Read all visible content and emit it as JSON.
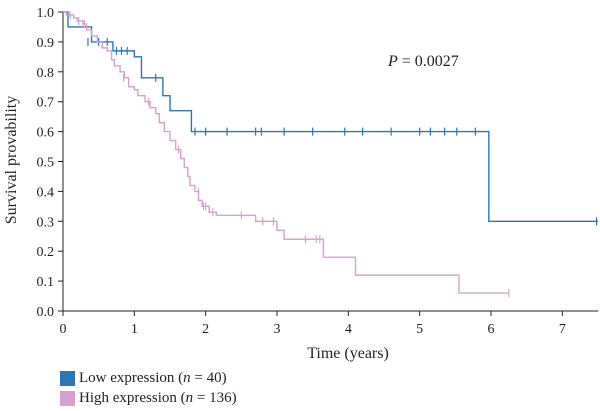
{
  "chart_data": {
    "type": "line",
    "subtype": "kaplan-meier",
    "xlabel": "Time (years)",
    "ylabel": "Survival provability",
    "xlim": [
      0,
      7.5
    ],
    "ylim": [
      0,
      1.0
    ],
    "xticks": [
      "0",
      "1",
      "2",
      "3",
      "4",
      "5",
      "6",
      "7"
    ],
    "yticks": [
      "0.0",
      "0.1",
      "0.2",
      "0.3",
      "0.4",
      "0.5",
      "0.6",
      "0.7",
      "0.8",
      "0.9",
      "1.0"
    ],
    "annotation": {
      "p_label": "P",
      "p_text": " = 0.0027"
    },
    "grid": false,
    "legend_position": "bottom-left",
    "series": [
      {
        "name": "Low expression (n = 40)",
        "legend_prefix": "Low expression (",
        "legend_n": "n",
        "legend_suffix": " = 40)",
        "color": "#2e75b6",
        "steps": [
          [
            0,
            1.0
          ],
          [
            0.07,
            0.95
          ],
          [
            0.4,
            0.9
          ],
          [
            0.7,
            0.87
          ],
          [
            1.0,
            0.85
          ],
          [
            1.1,
            0.78
          ],
          [
            1.4,
            0.72
          ],
          [
            1.5,
            0.67
          ],
          [
            1.8,
            0.6
          ],
          [
            5.97,
            0.3
          ],
          [
            7.5,
            0.3
          ]
        ],
        "censored": [
          [
            0.35,
            0.9
          ],
          [
            0.5,
            0.9
          ],
          [
            0.62,
            0.9
          ],
          [
            0.75,
            0.87
          ],
          [
            0.82,
            0.87
          ],
          [
            0.9,
            0.87
          ],
          [
            1.3,
            0.78
          ],
          [
            1.85,
            0.6
          ],
          [
            2.0,
            0.6
          ],
          [
            2.3,
            0.6
          ],
          [
            2.7,
            0.6
          ],
          [
            2.78,
            0.6
          ],
          [
            3.1,
            0.6
          ],
          [
            3.5,
            0.6
          ],
          [
            3.95,
            0.6
          ],
          [
            4.2,
            0.6
          ],
          [
            4.6,
            0.6
          ],
          [
            5.0,
            0.6
          ],
          [
            5.15,
            0.6
          ],
          [
            5.35,
            0.6
          ],
          [
            5.52,
            0.6
          ],
          [
            5.78,
            0.6
          ],
          [
            7.48,
            0.3
          ]
        ]
      },
      {
        "name": "High expression (n = 136)",
        "legend_prefix": "High expression (",
        "legend_n": "n",
        "legend_suffix": " = 136)",
        "color": "#d8a0d0",
        "steps": [
          [
            0,
            1.0
          ],
          [
            0.05,
            0.99
          ],
          [
            0.15,
            0.98
          ],
          [
            0.2,
            0.97
          ],
          [
            0.28,
            0.96
          ],
          [
            0.33,
            0.94
          ],
          [
            0.4,
            0.92
          ],
          [
            0.48,
            0.9
          ],
          [
            0.55,
            0.88
          ],
          [
            0.62,
            0.87
          ],
          [
            0.68,
            0.84
          ],
          [
            0.72,
            0.82
          ],
          [
            0.8,
            0.8
          ],
          [
            0.86,
            0.78
          ],
          [
            0.92,
            0.75
          ],
          [
            1.0,
            0.74
          ],
          [
            1.05,
            0.72
          ],
          [
            1.15,
            0.7
          ],
          [
            1.22,
            0.68
          ],
          [
            1.3,
            0.66
          ],
          [
            1.35,
            0.63
          ],
          [
            1.42,
            0.6
          ],
          [
            1.5,
            0.57
          ],
          [
            1.58,
            0.54
          ],
          [
            1.65,
            0.51
          ],
          [
            1.7,
            0.48
          ],
          [
            1.75,
            0.45
          ],
          [
            1.78,
            0.42
          ],
          [
            1.85,
            0.4
          ],
          [
            1.9,
            0.37
          ],
          [
            1.95,
            0.35
          ],
          [
            2.05,
            0.33
          ],
          [
            2.15,
            0.32
          ],
          [
            2.7,
            0.3
          ],
          [
            3.0,
            0.27
          ],
          [
            3.1,
            0.24
          ],
          [
            3.65,
            0.18
          ],
          [
            4.1,
            0.12
          ],
          [
            5.55,
            0.06
          ],
          [
            6.25,
            0.06
          ]
        ],
        "censored": [
          [
            0.1,
            0.99
          ],
          [
            0.22,
            0.97
          ],
          [
            0.3,
            0.96
          ],
          [
            0.85,
            0.78
          ],
          [
            1.2,
            0.7
          ],
          [
            1.62,
            0.54
          ],
          [
            1.9,
            0.4
          ],
          [
            1.97,
            0.35
          ],
          [
            2.0,
            0.35
          ],
          [
            2.1,
            0.33
          ],
          [
            2.5,
            0.32
          ],
          [
            2.8,
            0.3
          ],
          [
            2.95,
            0.3
          ],
          [
            3.4,
            0.24
          ],
          [
            3.55,
            0.24
          ],
          [
            3.6,
            0.24
          ],
          [
            6.25,
            0.06
          ]
        ]
      }
    ]
  }
}
